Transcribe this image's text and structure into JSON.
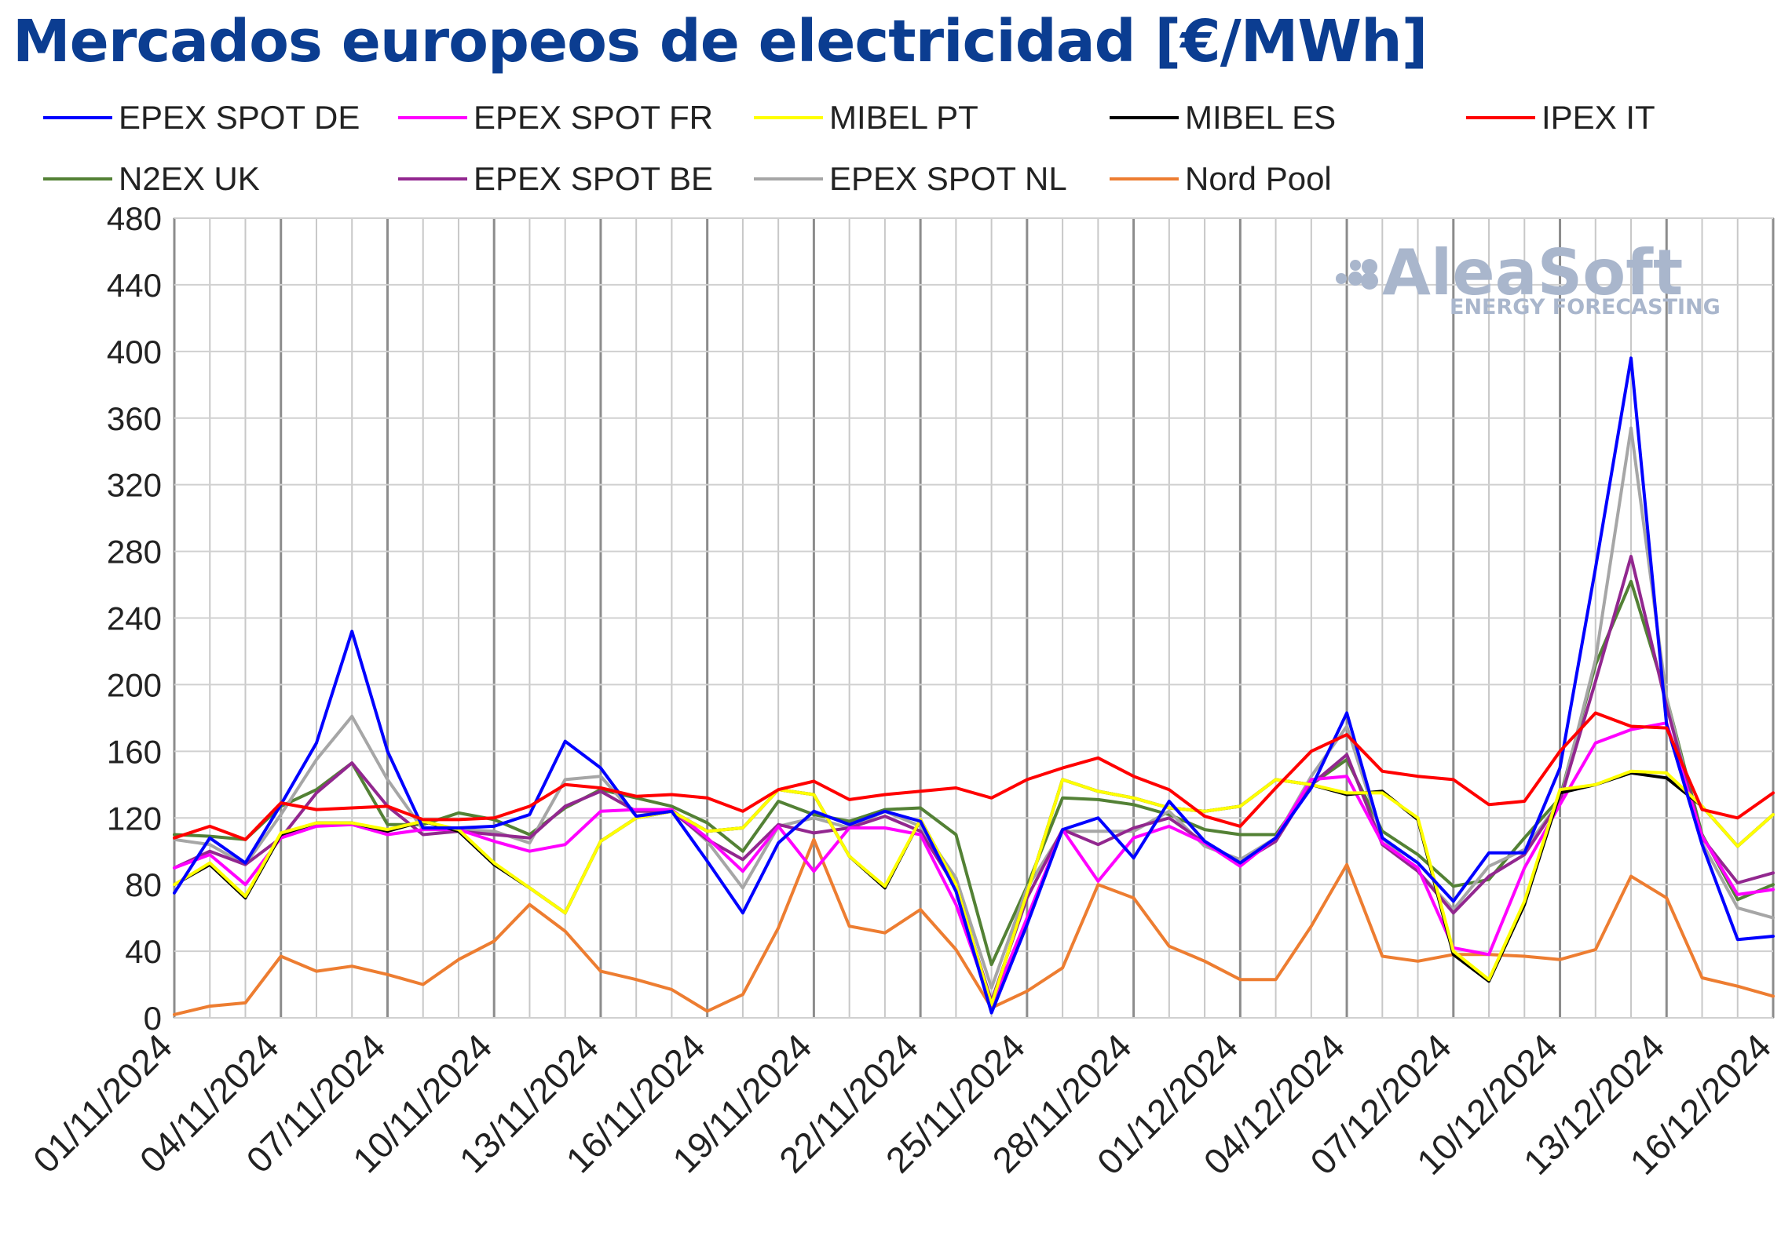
{
  "page": {
    "title": "Mercados europeos de electricidad [€/MWh]"
  },
  "watermark": {
    "brand": "AleaSoft",
    "tagline": "ENERGY FORECASTING"
  },
  "chart_data": {
    "type": "line",
    "title": "Mercados europeos de electricidad [€/MWh]",
    "xlabel": "",
    "ylabel": "",
    "ylim": [
      0,
      480
    ],
    "yticks": [
      0,
      40,
      80,
      120,
      160,
      200,
      240,
      280,
      320,
      360,
      400,
      440,
      480
    ],
    "grid": true,
    "legend_position": "top",
    "x": [
      "01/11/2024",
      "02/11/2024",
      "03/11/2024",
      "04/11/2024",
      "05/11/2024",
      "06/11/2024",
      "07/11/2024",
      "08/11/2024",
      "09/11/2024",
      "10/11/2024",
      "11/11/2024",
      "12/11/2024",
      "13/11/2024",
      "14/11/2024",
      "15/11/2024",
      "16/11/2024",
      "17/11/2024",
      "18/11/2024",
      "19/11/2024",
      "20/11/2024",
      "21/11/2024",
      "22/11/2024",
      "23/11/2024",
      "24/11/2024",
      "25/11/2024",
      "26/11/2024",
      "27/11/2024",
      "28/11/2024",
      "29/11/2024",
      "30/11/2024",
      "01/12/2024",
      "02/12/2024",
      "03/12/2024",
      "04/12/2024",
      "05/12/2024",
      "06/12/2024",
      "07/12/2024",
      "08/12/2024",
      "09/12/2024",
      "10/12/2024",
      "11/12/2024",
      "12/12/2024",
      "13/12/2024",
      "14/12/2024",
      "15/12/2024",
      "16/12/2024"
    ],
    "xtick_labels": [
      "01/11/2024",
      "04/11/2024",
      "07/11/2024",
      "10/11/2024",
      "13/11/2024",
      "16/11/2024",
      "19/11/2024",
      "22/11/2024",
      "25/11/2024",
      "28/11/2024",
      "01/12/2024",
      "04/12/2024",
      "07/12/2024",
      "10/12/2024",
      "13/12/2024",
      "16/12/2024"
    ],
    "series": [
      {
        "name": "EPEX SPOT DE",
        "color": "#0000ff",
        "values": [
          75,
          108,
          93,
          128,
          165,
          232,
          160,
          114,
          114,
          115,
          122,
          166,
          150,
          121,
          124,
          94,
          63,
          105,
          124,
          116,
          124,
          118,
          76,
          3,
          56,
          113,
          120,
          96,
          130,
          106,
          93,
          108,
          138,
          183,
          108,
          93,
          70,
          99,
          99,
          150,
          270,
          396,
          176,
          104,
          47,
          49
        ]
      },
      {
        "name": "EPEX SPOT FR",
        "color": "#ff00ff",
        "values": [
          90,
          98,
          80,
          108,
          115,
          116,
          110,
          113,
          113,
          106,
          100,
          104,
          124,
          125,
          125,
          108,
          88,
          115,
          88,
          114,
          114,
          110,
          68,
          8,
          60,
          113,
          82,
          108,
          115,
          105,
          91,
          108,
          143,
          145,
          105,
          90,
          42,
          38,
          90,
          128,
          165,
          173,
          177,
          109,
          74,
          77
        ]
      },
      {
        "name": "MIBEL PT",
        "color": "#ffff00",
        "values": [
          80,
          93,
          73,
          111,
          117,
          117,
          113,
          118,
          113,
          93,
          78,
          63,
          106,
          120,
          124,
          112,
          114,
          137,
          134,
          97,
          79,
          119,
          80,
          8,
          75,
          143,
          136,
          132,
          126,
          124,
          127,
          143,
          140,
          135,
          135,
          120,
          40,
          23,
          70,
          137,
          140,
          148,
          147,
          127,
          103,
          122
        ]
      },
      {
        "name": "MIBEL ES",
        "color": "#000000",
        "values": [
          80,
          92,
          72,
          110,
          117,
          117,
          112,
          118,
          112,
          92,
          78,
          63,
          106,
          120,
          124,
          112,
          114,
          137,
          134,
          97,
          78,
          119,
          80,
          8,
          75,
          143,
          136,
          132,
          126,
          124,
          127,
          143,
          140,
          134,
          136,
          119,
          38,
          22,
          68,
          135,
          140,
          147,
          144,
          127,
          103,
          122
        ]
      },
      {
        "name": "IPEX IT",
        "color": "#ff0000",
        "values": [
          108,
          115,
          107,
          129,
          125,
          126,
          127,
          119,
          119,
          120,
          127,
          140,
          138,
          133,
          134,
          132,
          124,
          137,
          142,
          131,
          134,
          136,
          138,
          132,
          143,
          150,
          156,
          145,
          137,
          121,
          115,
          138,
          160,
          170,
          148,
          145,
          143,
          128,
          130,
          160,
          183,
          175,
          174,
          125,
          120,
          135
        ]
      },
      {
        "name": "N2EX UK",
        "color": "#538135",
        "values": [
          110,
          109,
          107,
          127,
          137,
          153,
          116,
          116,
          123,
          119,
          110,
          126,
          137,
          132,
          127,
          117,
          100,
          130,
          122,
          118,
          125,
          126,
          110,
          32,
          79,
          132,
          131,
          128,
          122,
          113,
          110,
          110,
          140,
          155,
          112,
          98,
          79,
          83,
          108,
          132,
          212,
          262,
          192,
          110,
          71,
          80
        ]
      },
      {
        "name": "EPEX SPOT BE",
        "color": "#92278f",
        "values": [
          90,
          100,
          92,
          108,
          135,
          153,
          127,
          110,
          112,
          110,
          108,
          127,
          136,
          124,
          124,
          107,
          95,
          116,
          111,
          114,
          121,
          112,
          78,
          10,
          72,
          113,
          104,
          114,
          120,
          105,
          93,
          106,
          140,
          158,
          104,
          88,
          63,
          85,
          98,
          130,
          202,
          277,
          187,
          108,
          81,
          87
        ]
      },
      {
        "name": "EPEX SPOT NL",
        "color": "#a6a6a6",
        "values": [
          107,
          104,
          92,
          122,
          155,
          181,
          143,
          113,
          113,
          112,
          105,
          143,
          145,
          121,
          125,
          106,
          78,
          115,
          120,
          114,
          124,
          115,
          84,
          18,
          78,
          112,
          112,
          112,
          124,
          103,
          95,
          108,
          145,
          175,
          108,
          88,
          65,
          91,
          101,
          130,
          215,
          354,
          192,
          105,
          66,
          60
        ]
      },
      {
        "name": "Nord Pool",
        "color": "#ed7d31",
        "values": [
          2,
          7,
          9,
          37,
          28,
          31,
          26,
          20,
          35,
          46,
          68,
          52,
          28,
          23,
          17,
          4,
          14,
          54,
          107,
          55,
          51,
          65,
          41,
          6,
          16,
          30,
          80,
          72,
          43,
          34,
          23,
          23,
          55,
          92,
          37,
          34,
          38,
          38,
          37,
          35,
          41,
          85,
          72,
          24,
          19,
          13
        ]
      }
    ]
  }
}
